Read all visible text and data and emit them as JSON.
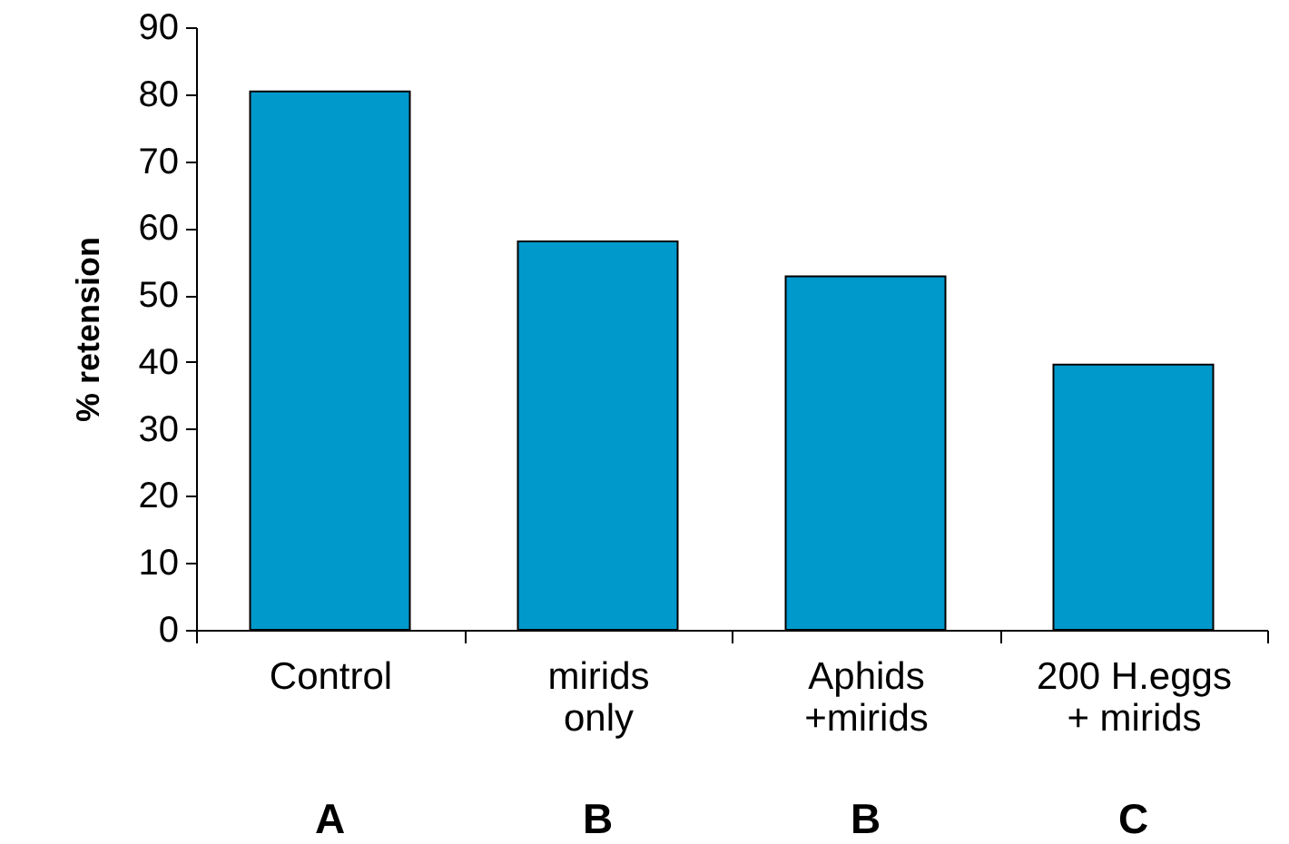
{
  "chart_data": {
    "type": "bar",
    "ylabel": "% retension",
    "categories": [
      "Control",
      "mirids\nonly",
      "Aphids\n+mirids",
      "200 H.eggs\n+ mirids"
    ],
    "values": [
      80.4,
      58,
      52.8,
      39.6
    ],
    "color": "#0099cc",
    "ylim": [
      0,
      90
    ],
    "yticks": [
      0,
      10,
      20,
      30,
      40,
      50,
      60,
      70,
      80,
      90
    ],
    "grid": false,
    "annotations": [
      "A",
      "B",
      "B",
      "C"
    ]
  }
}
